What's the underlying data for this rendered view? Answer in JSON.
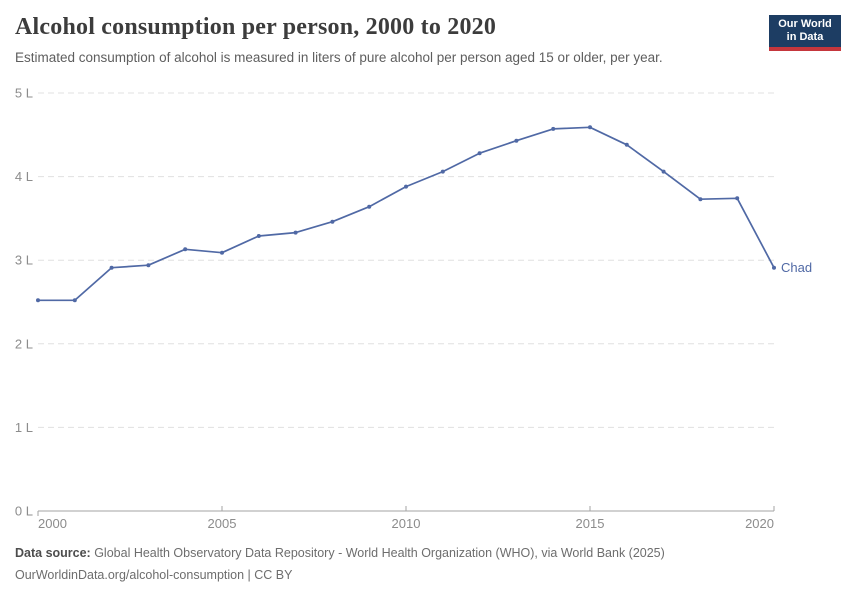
{
  "header": {
    "title": "Alcohol consumption per person, 2000 to 2020",
    "subtitle": "Estimated consumption of alcohol is measured in liters of pure alcohol per person aged 15 or older, per year.",
    "logo": {
      "line1": "Our World",
      "line2": "in Data",
      "bg_color": "#1d3d63",
      "accent_color": "#c5363c"
    }
  },
  "chart_data": {
    "type": "line",
    "title": "Alcohol consumption per person, 2000 to 2020",
    "xlabel": "",
    "ylabel": "liters of pure alcohol per person aged 15+",
    "xlim": [
      2000,
      2020
    ],
    "ylim": [
      0,
      5
    ],
    "x_ticks": [
      2000,
      2005,
      2010,
      2015,
      2020
    ],
    "y_ticks": [
      "0 L",
      "1 L",
      "2 L",
      "3 L",
      "4 L",
      "5 L"
    ],
    "grid": "horizontal dashed",
    "legend_position": "end-of-line label",
    "series": [
      {
        "name": "Chad",
        "color": "#5069a5",
        "x": [
          2000,
          2001,
          2002,
          2003,
          2004,
          2005,
          2006,
          2007,
          2008,
          2009,
          2010,
          2011,
          2012,
          2013,
          2014,
          2015,
          2016,
          2017,
          2018,
          2019,
          2020
        ],
        "values": [
          2.52,
          2.52,
          2.91,
          2.94,
          3.13,
          3.09,
          3.29,
          3.33,
          3.46,
          3.64,
          3.88,
          4.06,
          4.28,
          4.43,
          4.57,
          4.59,
          4.38,
          4.06,
          3.73,
          3.74,
          2.91
        ]
      }
    ],
    "axis_colors": {
      "gridline": "#e0e0e0",
      "axis_line": "#a3a3a3",
      "tick_label": "#8c8c8c"
    }
  },
  "footer": {
    "source_label": "Data source:",
    "source_text": " Global Health Observatory Data Repository - World Health Organization (WHO), via World Bank (2025)",
    "link_line": "OurWorldinData.org/alcohol-consumption | CC BY"
  }
}
